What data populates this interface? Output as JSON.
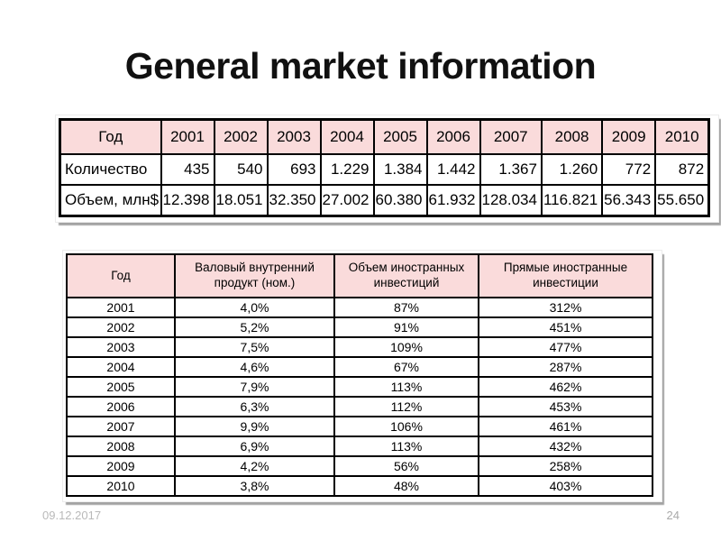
{
  "slide": {
    "title": "General market information",
    "footer": {
      "date": "09.12.2017",
      "page_number": "24"
    }
  },
  "colors": {
    "header_fill": "#fadbdb",
    "table_border": "#000000",
    "shadow": "#a3a3a3",
    "footer_text": "#b9b9b9"
  },
  "table1": {
    "columns": [
      "Год",
      "2001",
      "2002",
      "2003",
      "2004",
      "2005",
      "2006",
      "2007",
      "2008",
      "2009",
      "2010"
    ],
    "rows": [
      [
        "Количество",
        "435",
        "540",
        "693",
        "1.229",
        "1.384",
        "1.442",
        "1.367",
        "1.260",
        "772",
        "872"
      ],
      [
        "Объем, млн$",
        "12.398",
        "18.051",
        "32.350",
        "27.002",
        "60.380",
        "61.932",
        "128.034",
        "116.821",
        "56.343",
        "55.650"
      ]
    ]
  },
  "table2": {
    "columns": [
      "Год",
      "Валовый внутренний продукт (ном.)",
      "Объем иностранных инвестиций",
      "Прямые иностранные инвестиции"
    ],
    "rows": [
      [
        "2001",
        "4,0%",
        "87%",
        "312%"
      ],
      [
        "2002",
        "5,2%",
        "91%",
        "451%"
      ],
      [
        "2003",
        "7,5%",
        "109%",
        "477%"
      ],
      [
        "2004",
        "4,6%",
        "67%",
        "287%"
      ],
      [
        "2005",
        "7,9%",
        "113%",
        "462%"
      ],
      [
        "2006",
        "6,3%",
        "112%",
        "453%"
      ],
      [
        "2007",
        "9,9%",
        "106%",
        "461%"
      ],
      [
        "2008",
        "6,9%",
        "113%",
        "432%"
      ],
      [
        "2009",
        "4,2%",
        "56%",
        "258%"
      ],
      [
        "2010",
        "3,8%",
        "48%",
        "403%"
      ]
    ]
  }
}
